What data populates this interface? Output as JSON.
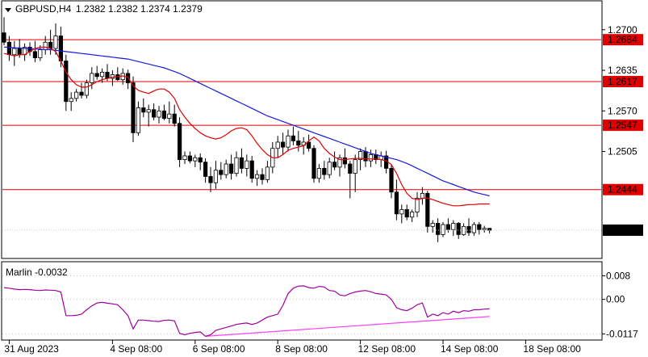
{
  "header": {
    "symbol": "GBPUSD,H4",
    "ohlc": "1.2382 1.2382 1.2374 1.2379",
    "dropdown_icon": "triangle-down-icon"
  },
  "colors": {
    "background": "#ffffff",
    "axis": "#000000",
    "candle_body_bear": "#000000",
    "candle_body_bull": "#ffffff",
    "ma_fast": "#e00000",
    "ma_slow": "#1a1adc",
    "level_line": "#e00000",
    "level_tag_bg": "#e00000",
    "price_tag_bg": "#000000",
    "oscillator": "#a000a0",
    "trendline": "#ff40ff",
    "grid_dots": "#c8c8c8"
  },
  "chart_data": [
    {
      "type": "candlestick",
      "title": "GBPUSD,H4",
      "ylim": [
        1.2335,
        1.2745
      ],
      "y_ticks": [
        "1.2700",
        "1.2635",
        "1.2570",
        "1.2505"
      ],
      "y_tick_values": [
        1.27,
        1.2635,
        1.257,
        1.2505
      ],
      "x_ticks": [
        "31 Aug 2023",
        "4 Sep 08:00",
        "6 Sep 08:00",
        "8 Sep 08:00",
        "12 Sep 08:00",
        "14 Sep 08:00",
        "18 Sep 08:00"
      ],
      "x_tick_index": [
        1,
        21,
        37,
        53,
        69,
        85,
        101
      ],
      "levels": [
        {
          "value": 1.2684,
          "label": "1.2684"
        },
        {
          "value": 1.2617,
          "label": "1.2617"
        },
        {
          "value": 1.2547,
          "label": "1.2547"
        },
        {
          "value": 1.2444,
          "label": "1.2444"
        }
      ],
      "current_price": {
        "value": 1.2379,
        "label": "1.2379"
      },
      "candles": [
        [
          1.2695,
          1.272,
          1.2675,
          1.268
        ],
        [
          1.268,
          1.269,
          1.265,
          1.266
        ],
        [
          1.266,
          1.2682,
          1.2642,
          1.267
        ],
        [
          1.267,
          1.2685,
          1.2655,
          1.266
        ],
        [
          1.266,
          1.2678,
          1.265,
          1.2672
        ],
        [
          1.2672,
          1.268,
          1.2658,
          1.2665
        ],
        [
          1.2665,
          1.2682,
          1.2648,
          1.2655
        ],
        [
          1.2655,
          1.2675,
          1.265,
          1.2668
        ],
        [
          1.2668,
          1.269,
          1.266,
          1.268
        ],
        [
          1.268,
          1.27,
          1.266,
          1.267
        ],
        [
          1.267,
          1.271,
          1.266,
          1.269
        ],
        [
          1.269,
          1.2705,
          1.264,
          1.265
        ],
        [
          1.265,
          1.266,
          1.257,
          1.2585
        ],
        [
          1.2585,
          1.26,
          1.257,
          1.259
        ],
        [
          1.259,
          1.2605,
          1.2585,
          1.26
        ],
        [
          1.26,
          1.2615,
          1.259,
          1.2595
        ],
        [
          1.2595,
          1.262,
          1.259,
          1.2615
        ],
        [
          1.2615,
          1.264,
          1.2605,
          1.263
        ],
        [
          1.263,
          1.2642,
          1.262,
          1.2625
        ],
        [
          1.2625,
          1.2638,
          1.2615,
          1.2632
        ],
        [
          1.2632,
          1.2645,
          1.2618,
          1.2622
        ],
        [
          1.2622,
          1.2635,
          1.261,
          1.2628
        ],
        [
          1.2628,
          1.264,
          1.2618,
          1.262
        ],
        [
          1.262,
          1.2638,
          1.2612,
          1.263
        ],
        [
          1.263,
          1.2636,
          1.2605,
          1.2615
        ],
        [
          1.2615,
          1.2625,
          1.252,
          1.2535
        ],
        [
          1.2535,
          1.2585,
          1.253,
          1.2575
        ],
        [
          1.2575,
          1.259,
          1.256,
          1.2568
        ],
        [
          1.2568,
          1.258,
          1.2545,
          1.2572
        ],
        [
          1.2572,
          1.2582,
          1.2555,
          1.256
        ],
        [
          1.256,
          1.2578,
          1.255,
          1.257
        ],
        [
          1.257,
          1.258,
          1.2555,
          1.2558
        ],
        [
          1.2558,
          1.2585,
          1.255,
          1.2565
        ],
        [
          1.2565,
          1.258,
          1.2545,
          1.255
        ],
        [
          1.255,
          1.256,
          1.248,
          1.2492
        ],
        [
          1.2492,
          1.2505,
          1.2485,
          1.2498
        ],
        [
          1.2498,
          1.2505,
          1.2486,
          1.249
        ],
        [
          1.249,
          1.25,
          1.248,
          1.2495
        ],
        [
          1.2495,
          1.2502,
          1.2475,
          1.2488
        ],
        [
          1.2488,
          1.2494,
          1.2455,
          1.2465
        ],
        [
          1.2465,
          1.248,
          1.244,
          1.2455
        ],
        [
          1.2455,
          1.249,
          1.2445,
          1.2475
        ],
        [
          1.2475,
          1.2488,
          1.246,
          1.2468
        ],
        [
          1.2468,
          1.2492,
          1.2462,
          1.2485
        ],
        [
          1.2485,
          1.25,
          1.246,
          1.247
        ],
        [
          1.247,
          1.2505,
          1.2465,
          1.2495
        ],
        [
          1.2495,
          1.251,
          1.247,
          1.2478
        ],
        [
          1.2478,
          1.25,
          1.2465,
          1.249
        ],
        [
          1.249,
          1.2498,
          1.2455,
          1.2462
        ],
        [
          1.2462,
          1.2475,
          1.245,
          1.2468
        ],
        [
          1.2468,
          1.2478,
          1.2452,
          1.246
        ],
        [
          1.246,
          1.249,
          1.2455,
          1.248
        ],
        [
          1.248,
          1.252,
          1.247,
          1.251
        ],
        [
          1.251,
          1.253,
          1.2495,
          1.252
        ],
        [
          1.252,
          1.2535,
          1.25,
          1.2512
        ],
        [
          1.2512,
          1.254,
          1.2505,
          1.253
        ],
        [
          1.253,
          1.2545,
          1.2515,
          1.2522
        ],
        [
          1.2522,
          1.2538,
          1.2505,
          1.2515
        ],
        [
          1.2515,
          1.2528,
          1.25,
          1.252
        ],
        [
          1.252,
          1.2532,
          1.2505,
          1.251
        ],
        [
          1.251,
          1.2515,
          1.2455,
          1.2462
        ],
        [
          1.2462,
          1.2485,
          1.2455,
          1.2478
        ],
        [
          1.2478,
          1.249,
          1.246,
          1.2468
        ],
        [
          1.2468,
          1.2495,
          1.2462,
          1.2488
        ],
        [
          1.2488,
          1.2505,
          1.2475,
          1.248
        ],
        [
          1.248,
          1.25,
          1.2465,
          1.2495
        ],
        [
          1.2495,
          1.251,
          1.2478,
          1.2485
        ],
        [
          1.2485,
          1.249,
          1.243,
          1.247
        ],
        [
          1.247,
          1.25,
          1.244,
          1.2492
        ],
        [
          1.2492,
          1.251,
          1.2475,
          1.2505
        ],
        [
          1.2505,
          1.2512,
          1.248,
          1.249
        ],
        [
          1.249,
          1.2508,
          1.248,
          1.25
        ],
        [
          1.25,
          1.2508,
          1.2485,
          1.2492
        ],
        [
          1.2492,
          1.2505,
          1.248,
          1.2498
        ],
        [
          1.2498,
          1.2506,
          1.247,
          1.2478
        ],
        [
          1.2478,
          1.2485,
          1.243,
          1.244
        ],
        [
          1.244,
          1.246,
          1.2395,
          1.2405
        ],
        [
          1.2405,
          1.242,
          1.239,
          1.2412
        ],
        [
          1.2412,
          1.242,
          1.2395,
          1.24
        ],
        [
          1.24,
          1.2412,
          1.2392,
          1.2408
        ],
        [
          1.2408,
          1.244,
          1.24,
          1.243
        ],
        [
          1.243,
          1.2448,
          1.242,
          1.2438
        ],
        [
          1.2438,
          1.2442,
          1.2375,
          1.2385
        ],
        [
          1.2385,
          1.2395,
          1.2375,
          1.239
        ],
        [
          1.239,
          1.2398,
          1.236,
          1.2372
        ],
        [
          1.2372,
          1.2392,
          1.2368,
          1.2388
        ],
        [
          1.2388,
          1.2398,
          1.2375,
          1.238
        ],
        [
          1.238,
          1.2395,
          1.237,
          1.239
        ],
        [
          1.239,
          1.2392,
          1.2365,
          1.2372
        ],
        [
          1.2372,
          1.239,
          1.237,
          1.2385
        ],
        [
          1.2385,
          1.2398,
          1.237,
          1.2375
        ],
        [
          1.2375,
          1.2392,
          1.237,
          1.2388
        ],
        [
          1.2388,
          1.2392,
          1.2372,
          1.238
        ],
        [
          1.238,
          1.2386,
          1.2375,
          1.2382
        ],
        [
          1.2382,
          1.2382,
          1.2374,
          1.2379
        ]
      ],
      "ma_fast": [
        1.2662,
        1.266,
        1.2658,
        1.266,
        1.266,
        1.2665,
        1.267,
        1.2672,
        1.2672,
        1.267,
        1.2665,
        1.265,
        1.2632,
        1.262,
        1.2612,
        1.2608,
        1.2608,
        1.2612,
        1.2617,
        1.262,
        1.2622,
        1.2624,
        1.2625,
        1.2626,
        1.2624,
        1.261,
        1.2603,
        1.26,
        1.2598,
        1.2602,
        1.2605,
        1.2605,
        1.26,
        1.259,
        1.2572,
        1.256,
        1.255,
        1.2542,
        1.2535,
        1.253,
        1.2527,
        1.2525,
        1.2527,
        1.2532,
        1.2538,
        1.2542,
        1.2543,
        1.254,
        1.253,
        1.2518,
        1.2508,
        1.25,
        1.2495,
        1.2495,
        1.25,
        1.2507,
        1.251,
        1.2512,
        1.2514,
        1.2522,
        1.2528,
        1.2522,
        1.251,
        1.2502,
        1.2496,
        1.2492,
        1.2492,
        1.2493,
        1.2494,
        1.2494,
        1.2493,
        1.2493,
        1.2493,
        1.2492,
        1.249,
        1.2484,
        1.247,
        1.2452,
        1.2438,
        1.243,
        1.2428,
        1.243,
        1.243,
        1.2428,
        1.2425,
        1.2422,
        1.242,
        1.2418,
        1.2418,
        1.2419,
        1.242,
        1.242,
        1.2421,
        1.2421,
        1.2421
      ],
      "ma_slow": [
        1.2672,
        1.2672,
        1.2671,
        1.2671,
        1.267,
        1.267,
        1.2669,
        1.2669,
        1.2668,
        1.2668,
        1.2667,
        1.2666,
        1.2665,
        1.2664,
        1.2663,
        1.2662,
        1.2661,
        1.266,
        1.2659,
        1.2658,
        1.2657,
        1.2656,
        1.2655,
        1.2654,
        1.2653,
        1.2651,
        1.2649,
        1.2647,
        1.2645,
        1.2643,
        1.2641,
        1.2639,
        1.2636,
        1.2633,
        1.263,
        1.2626,
        1.2622,
        1.2618,
        1.2614,
        1.261,
        1.2606,
        1.2602,
        1.2598,
        1.2594,
        1.259,
        1.2586,
        1.2582,
        1.2578,
        1.2574,
        1.257,
        1.2566,
        1.2562,
        1.2559,
        1.2556,
        1.2553,
        1.255,
        1.2547,
        1.2544,
        1.2541,
        1.2538,
        1.2535,
        1.2532,
        1.2529,
        1.2526,
        1.2523,
        1.252,
        1.2517,
        1.2514,
        1.2511,
        1.2508,
        1.2505,
        1.2502,
        1.25,
        1.2498,
        1.2496,
        1.2494,
        1.2492,
        1.2489,
        1.2486,
        1.2482,
        1.2478,
        1.2474,
        1.247,
        1.2466,
        1.2462,
        1.2458,
        1.2455,
        1.2452,
        1.2449,
        1.2446,
        1.2443,
        1.244,
        1.2438,
        1.2436,
        1.2434
      ]
    },
    {
      "type": "line",
      "title": "Marlin -0.0032",
      "ylim": [
        -0.0135,
        0.0125
      ],
      "y_ticks": [
        "0.008",
        "0.00",
        "-0.0117"
      ],
      "y_tick_values": [
        0.008,
        0.0,
        -0.0117
      ],
      "series": [
        {
          "name": "Marlin -0.0032",
          "values": [
            0.004,
            0.0038,
            0.0035,
            0.0033,
            0.0034,
            0.0033,
            0.0031,
            0.003,
            0.0032,
            0.0031,
            0.003,
            0.0025,
            -0.0055,
            -0.0055,
            -0.0054,
            -0.005,
            -0.0035,
            -0.0022,
            -0.0012,
            -0.001,
            -0.0013,
            -0.0015,
            -0.0018,
            -0.0035,
            -0.0055,
            -0.01,
            -0.007,
            -0.007,
            -0.0072,
            -0.0074,
            -0.0075,
            -0.0071,
            -0.007,
            -0.0073,
            -0.0115,
            -0.012,
            -0.0115,
            -0.0112,
            -0.011,
            -0.0125,
            -0.012,
            -0.0105,
            -0.01,
            -0.0095,
            -0.009,
            -0.0085,
            -0.0082,
            -0.008,
            -0.0085,
            -0.008,
            -0.007,
            -0.006,
            -0.0055,
            -0.005,
            -0.002,
            0.002,
            0.0038,
            0.0045,
            0.0046,
            0.004,
            0.0038,
            0.0044,
            0.0042,
            0.003,
            0.0028,
            0.0015,
            0.0012,
            0.002,
            0.0025,
            0.0028,
            0.003,
            0.0026,
            0.002,
            0.0018,
            0.0015,
            0.0,
            -0.0028,
            -0.0035,
            -0.0038,
            -0.003,
            -0.0018,
            -0.0012,
            -0.006,
            -0.005,
            -0.0055,
            -0.0045,
            -0.005,
            -0.004,
            -0.0045,
            -0.0038,
            -0.004,
            -0.0035,
            -0.0035,
            -0.0033,
            -0.0032
          ]
        }
      ],
      "trendline": [
        [
          39,
          -0.0125
        ],
        [
          94,
          -0.0058
        ]
      ]
    }
  ]
}
